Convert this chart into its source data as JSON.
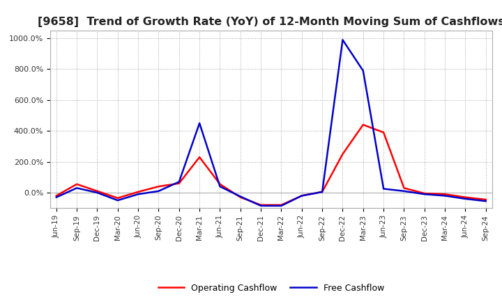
{
  "title": "[9658]  Trend of Growth Rate (YoY) of 12-Month Moving Sum of Cashflows",
  "title_fontsize": 11.5,
  "background_color": "#ffffff",
  "plot_bg_color": "#ffffff",
  "grid_color": "#999999",
  "operating_color": "#ff0000",
  "free_color": "#0000cc",
  "line_width": 1.8,
  "ylim": [
    -100,
    1050
  ],
  "yticks": [
    0,
    200,
    400,
    600,
    800,
    1000
  ],
  "dates": [
    "Jun-19",
    "Sep-19",
    "Dec-19",
    "Mar-20",
    "Jun-20",
    "Sep-20",
    "Dec-20",
    "Mar-21",
    "Jun-21",
    "Sep-21",
    "Dec-21",
    "Mar-22",
    "Jun-22",
    "Sep-22",
    "Dec-22",
    "Mar-23",
    "Jun-23",
    "Sep-23",
    "Dec-23",
    "Mar-24",
    "Jun-24",
    "Sep-24"
  ],
  "operating_cashflow": [
    -20,
    55,
    10,
    -35,
    5,
    40,
    60,
    230,
    55,
    -30,
    -80,
    -80,
    -20,
    5,
    250,
    440,
    390,
    30,
    -5,
    -10,
    -30,
    -45
  ],
  "free_cashflow": [
    -30,
    30,
    0,
    -50,
    -10,
    10,
    70,
    450,
    40,
    -25,
    -85,
    -85,
    -20,
    5,
    990,
    790,
    25,
    10,
    -10,
    -20,
    -40,
    -55
  ],
  "legend_labels": [
    "Operating Cashflow",
    "Free Cashflow"
  ],
  "legend_fontsize": 9
}
